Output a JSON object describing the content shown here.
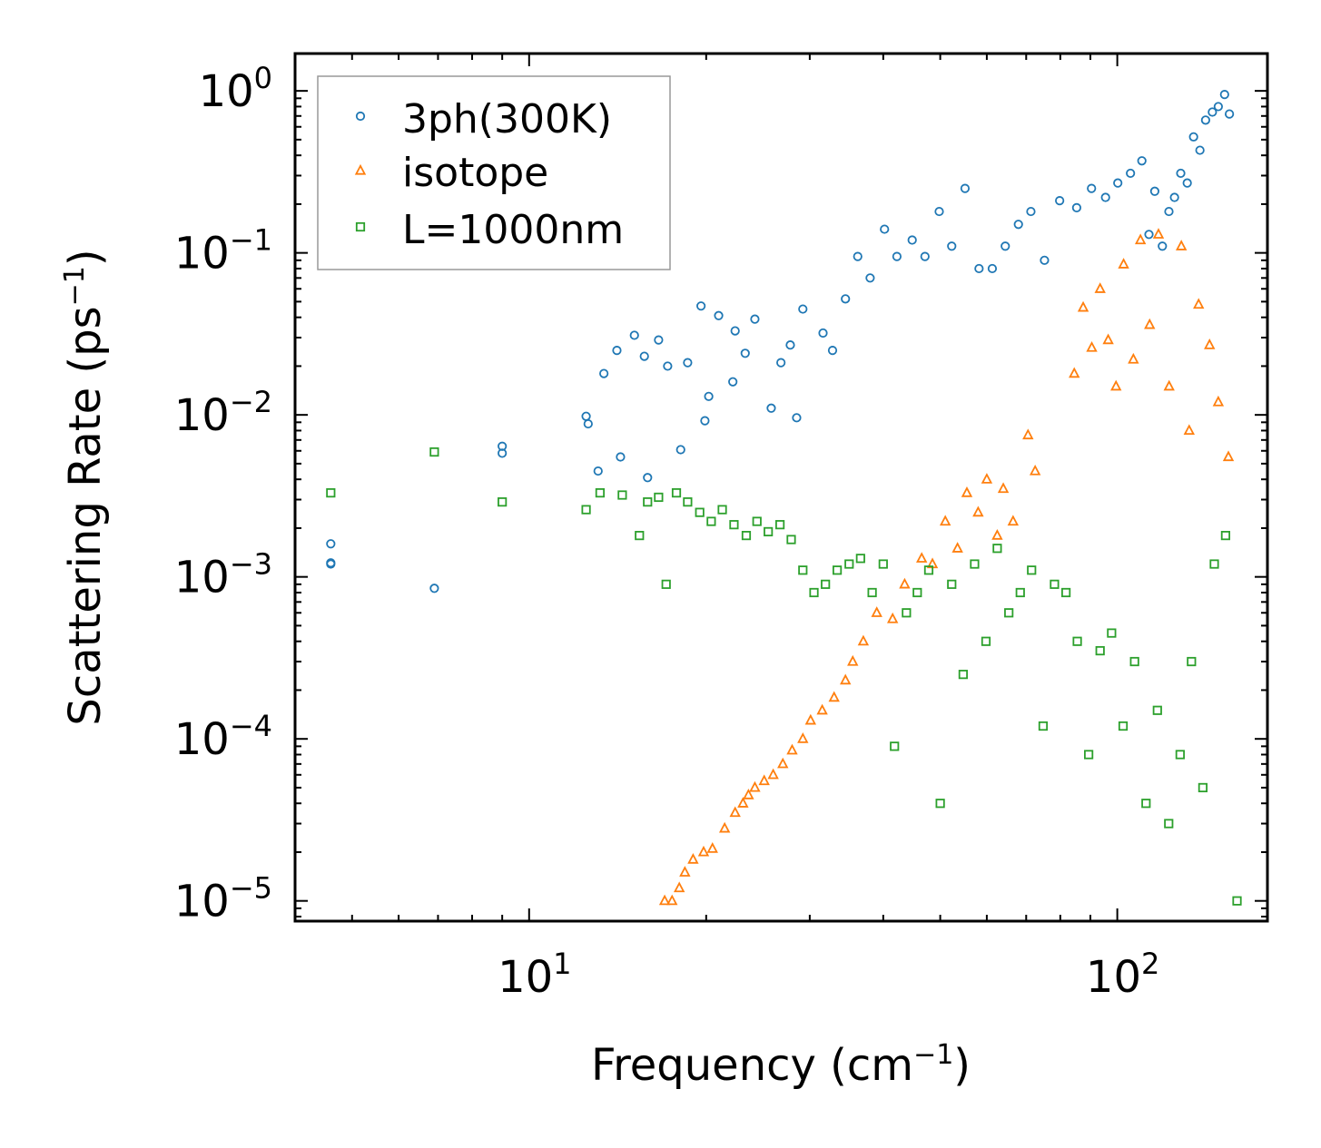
{
  "chart_data": {
    "type": "scatter",
    "xscale": "log",
    "yscale": "log",
    "xlim": [
      4,
      180
    ],
    "ylim": [
      7.5e-06,
      1.7
    ],
    "xlabel": {
      "text": "Frequency (cm",
      "sup": "−1",
      "tail": ")"
    },
    "ylabel": {
      "text": "Scattering Rate (ps",
      "sup": "−1",
      "tail": ")"
    },
    "xticks": [
      {
        "base": "10",
        "exp": "1",
        "value": 10
      },
      {
        "base": "10",
        "exp": "2",
        "value": 100
      }
    ],
    "yticks": [
      {
        "base": "10",
        "exp": "0",
        "value": 1
      },
      {
        "base": "10",
        "exp": "−1",
        "value": 0.1
      },
      {
        "base": "10",
        "exp": "−2",
        "value": 0.01
      },
      {
        "base": "10",
        "exp": "−3",
        "value": 0.001
      },
      {
        "base": "10",
        "exp": "−4",
        "value": 0.0001
      },
      {
        "base": "10",
        "exp": "−5",
        "value": 1e-05
      }
    ],
    "legend_position": "top-left",
    "series": [
      {
        "name": "3ph(300K)",
        "marker": "circle",
        "color": "#1f77b4",
        "x": [
          4.6,
          4.6,
          4.6,
          6.9,
          9,
          9,
          12.5,
          12.6,
          13.1,
          13.4,
          14.1,
          14.3,
          15.1,
          15.7,
          15.9,
          16.6,
          17.2,
          18.1,
          18.6,
          19.6,
          19.9,
          20.2,
          21,
          22.2,
          22.4,
          23.3,
          24.2,
          25.8,
          26.8,
          27.8,
          28.5,
          29.2,
          31.6,
          32.8,
          34.5,
          36.2,
          38,
          40.2,
          42.2,
          44.8,
          47.1,
          49.8,
          52.3,
          55.1,
          58.2,
          61.3,
          64.5,
          67.9,
          71.3,
          75.2,
          79.8,
          85.3,
          90.4,
          95.5,
          100.2,
          105.3,
          110.1,
          113.2,
          115.8,
          119.3,
          122.4,
          125.1,
          128.2,
          131.5,
          134.8,
          138.2,
          141.3,
          145.1,
          148.5,
          152.2,
          155.1
        ],
        "y": [
          0.0016,
          0.00122,
          0.0012,
          0.00085,
          0.0064,
          0.0058,
          0.0098,
          0.0088,
          0.0045,
          0.018,
          0.025,
          0.0055,
          0.031,
          0.023,
          0.0041,
          0.029,
          0.02,
          0.0061,
          0.021,
          0.047,
          0.0092,
          0.013,
          0.041,
          0.016,
          0.033,
          0.024,
          0.039,
          0.011,
          0.021,
          0.027,
          0.0096,
          0.045,
          0.032,
          0.025,
          0.052,
          0.095,
          0.07,
          0.14,
          0.095,
          0.12,
          0.095,
          0.18,
          0.11,
          0.25,
          0.08,
          0.08,
          0.11,
          0.15,
          0.18,
          0.09,
          0.21,
          0.19,
          0.25,
          0.22,
          0.27,
          0.31,
          0.37,
          0.13,
          0.24,
          0.11,
          0.18,
          0.22,
          0.31,
          0.27,
          0.52,
          0.43,
          0.66,
          0.74,
          0.8,
          0.95,
          0.72
        ]
      },
      {
        "name": "isotope",
        "marker": "triangle",
        "color": "#ff7f0e",
        "x": [
          17,
          17.5,
          18,
          18.4,
          19,
          19.8,
          20.5,
          21.5,
          22.4,
          23.1,
          23.6,
          24.2,
          25.1,
          26,
          27,
          28,
          29.2,
          30.1,
          31.5,
          33,
          34.5,
          35.5,
          37,
          39,
          41.5,
          43.5,
          46.5,
          48.5,
          51,
          53.5,
          55.5,
          58,
          60,
          62.5,
          64,
          66.5,
          70.5,
          72.5,
          84.5,
          87.5,
          90.5,
          93.5,
          96.5,
          99.5,
          102.5,
          106.5,
          109.5,
          113.5,
          117.5,
          122.5,
          128.5,
          132.5,
          137.5,
          143.5,
          148.5,
          154.5
        ],
        "y": [
          1e-05,
          1e-05,
          1.2e-05,
          1.5e-05,
          1.8e-05,
          2e-05,
          2.1e-05,
          2.8e-05,
          3.5e-05,
          4e-05,
          4.5e-05,
          5e-05,
          5.5e-05,
          6e-05,
          7e-05,
          8.5e-05,
          0.0001,
          0.00013,
          0.00015,
          0.00018,
          0.00023,
          0.0003,
          0.0004,
          0.0006,
          0.00055,
          0.0009,
          0.0013,
          0.0012,
          0.0022,
          0.0015,
          0.0033,
          0.0025,
          0.004,
          0.0018,
          0.0035,
          0.0022,
          0.0075,
          0.0045,
          0.018,
          0.046,
          0.026,
          0.06,
          0.029,
          0.015,
          0.085,
          0.022,
          0.12,
          0.036,
          0.13,
          0.015,
          0.11,
          0.008,
          0.048,
          0.027,
          0.012,
          0.0055
        ]
      },
      {
        "name": "L=1000nm",
        "marker": "square",
        "color": "#2ca02c",
        "x": [
          4.6,
          6.9,
          9,
          12.5,
          13.2,
          14.4,
          15.4,
          15.9,
          16.6,
          17.1,
          17.8,
          18.6,
          19.5,
          20.4,
          21.3,
          22.3,
          23.4,
          24.4,
          25.5,
          26.7,
          27.9,
          29.2,
          30.5,
          31.9,
          33.4,
          35,
          36.6,
          38.3,
          40,
          41.8,
          43.8,
          45.7,
          47.8,
          50,
          52.3,
          54.7,
          57.2,
          59.8,
          62.5,
          65.4,
          68.4,
          71.5,
          74.8,
          78.2,
          81.8,
          85.5,
          89.4,
          93.5,
          97.8,
          102.3,
          107,
          111.9,
          117,
          122.3,
          127.9,
          133.7,
          139.8,
          146.2,
          152.8,
          159.8
        ],
        "y": [
          0.0033,
          0.0059,
          0.0029,
          0.0026,
          0.0033,
          0.0032,
          0.0018,
          0.0029,
          0.0031,
          0.0009,
          0.0033,
          0.0029,
          0.0025,
          0.0022,
          0.0026,
          0.0021,
          0.0018,
          0.0022,
          0.0019,
          0.0021,
          0.0017,
          0.0011,
          0.0008,
          0.0009,
          0.0011,
          0.0012,
          0.0013,
          0.0008,
          0.0012,
          9e-05,
          0.0006,
          0.0008,
          0.0011,
          4e-05,
          0.0009,
          0.00025,
          0.0012,
          0.0004,
          0.0015,
          0.0006,
          0.0008,
          0.0011,
          0.00012,
          0.0009,
          0.0008,
          0.0004,
          8e-05,
          0.00035,
          0.00045,
          0.00012,
          0.0003,
          4e-05,
          0.00015,
          3e-05,
          8e-05,
          0.0003,
          5e-05,
          0.0012,
          0.0018,
          1e-05
        ]
      }
    ]
  }
}
